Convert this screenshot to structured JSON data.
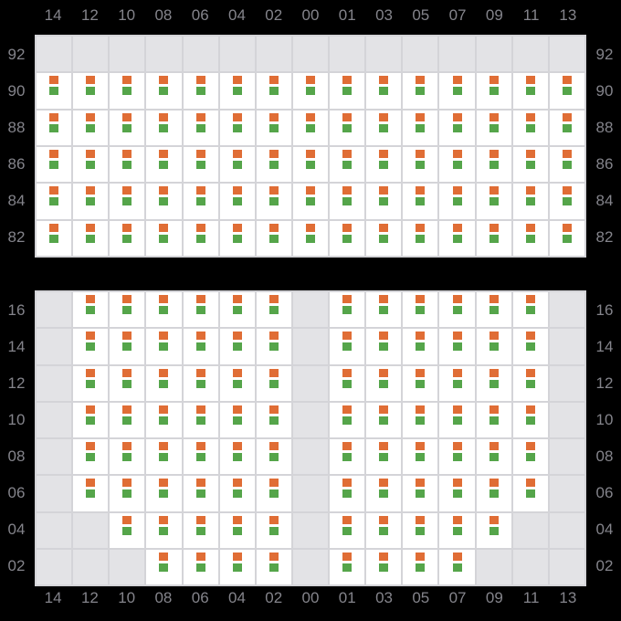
{
  "columns": [
    "14",
    "12",
    "10",
    "08",
    "06",
    "04",
    "02",
    "00",
    "01",
    "03",
    "05",
    "07",
    "09",
    "11",
    "13"
  ],
  "top_grid": {
    "row_labels": [
      "92",
      "90",
      "88",
      "86",
      "84",
      "82"
    ],
    "occupancy": [
      [
        0,
        0,
        0,
        0,
        0,
        0,
        0,
        0,
        0,
        0,
        0,
        0,
        0,
        0,
        0
      ],
      [
        1,
        1,
        1,
        1,
        1,
        1,
        1,
        1,
        1,
        1,
        1,
        1,
        1,
        1,
        1
      ],
      [
        1,
        1,
        1,
        1,
        1,
        1,
        1,
        1,
        1,
        1,
        1,
        1,
        1,
        1,
        1
      ],
      [
        1,
        1,
        1,
        1,
        1,
        1,
        1,
        1,
        1,
        1,
        1,
        1,
        1,
        1,
        1
      ],
      [
        1,
        1,
        1,
        1,
        1,
        1,
        1,
        1,
        1,
        1,
        1,
        1,
        1,
        1,
        1
      ],
      [
        1,
        1,
        1,
        1,
        1,
        1,
        1,
        1,
        1,
        1,
        1,
        1,
        1,
        1,
        1
      ]
    ]
  },
  "bottom_grid": {
    "row_labels": [
      "16",
      "14",
      "12",
      "10",
      "08",
      "06",
      "04",
      "02"
    ],
    "occupancy": [
      [
        0,
        1,
        1,
        1,
        1,
        1,
        1,
        0,
        1,
        1,
        1,
        1,
        1,
        1,
        0
      ],
      [
        0,
        1,
        1,
        1,
        1,
        1,
        1,
        0,
        1,
        1,
        1,
        1,
        1,
        1,
        0
      ],
      [
        0,
        1,
        1,
        1,
        1,
        1,
        1,
        0,
        1,
        1,
        1,
        1,
        1,
        1,
        0
      ],
      [
        0,
        1,
        1,
        1,
        1,
        1,
        1,
        0,
        1,
        1,
        1,
        1,
        1,
        1,
        0
      ],
      [
        0,
        1,
        1,
        1,
        1,
        1,
        1,
        0,
        1,
        1,
        1,
        1,
        1,
        1,
        0
      ],
      [
        0,
        1,
        1,
        1,
        1,
        1,
        1,
        0,
        1,
        1,
        1,
        1,
        1,
        1,
        0
      ],
      [
        0,
        0,
        1,
        1,
        1,
        1,
        1,
        0,
        1,
        1,
        1,
        1,
        1,
        0,
        0
      ],
      [
        0,
        0,
        0,
        1,
        1,
        1,
        1,
        0,
        1,
        1,
        1,
        1,
        0,
        0,
        0
      ]
    ]
  },
  "colors": {
    "upper_marker": "#e06d35",
    "lower_marker": "#55a54a",
    "occupied_cell": "#ffffff",
    "empty_cell": "#e3e3e6",
    "gridline": "#d4d4d8",
    "label_text": "#84848b",
    "background": "#000000"
  }
}
